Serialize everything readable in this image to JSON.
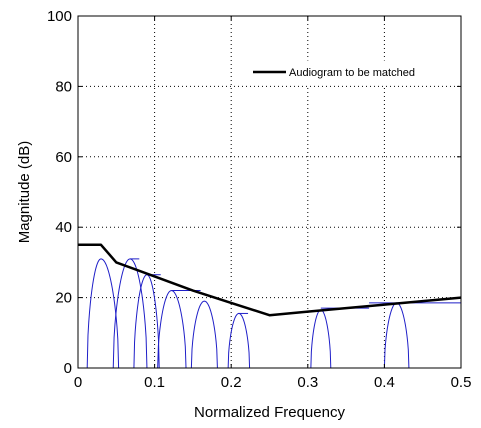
{
  "chart_data": {
    "type": "line",
    "xlabel": "Normalized Frequency",
    "ylabel": "Magnitude (dB)",
    "xlim": [
      0,
      0.5
    ],
    "ylim": [
      0,
      100
    ],
    "xticks": [
      0,
      0.1,
      0.2,
      0.3,
      0.4,
      0.5
    ],
    "xtick_labels": [
      "0",
      "0.1",
      "0.2",
      "0.3",
      "0.4",
      "0.5"
    ],
    "yticks": [
      0,
      20,
      40,
      60,
      80,
      100
    ],
    "ytick_labels": [
      "0",
      "20",
      "40",
      "60",
      "80",
      "100"
    ],
    "grid": true,
    "legend_position": "top-right",
    "colors": {
      "audiogram": "#000000",
      "filters": "#1f1fc8"
    },
    "series": [
      {
        "name": "Audiogram to be matched",
        "x": [
          0,
          0.03,
          0.05,
          0.1,
          0.15,
          0.2,
          0.25,
          0.3,
          0.35,
          0.4,
          0.45,
          0.5
        ],
        "y": [
          35,
          35,
          30,
          26,
          22,
          18.5,
          15,
          16,
          17,
          18,
          19,
          20
        ]
      }
    ],
    "filter_bands": [
      {
        "lo": 0.012,
        "hi": 0.053,
        "peak_x": 0.03,
        "peak_y": 31
      },
      {
        "lo": 0.046,
        "hi": 0.09,
        "peak_x": 0.068,
        "peak_y": 31
      },
      {
        "lo": 0.073,
        "hi": 0.106,
        "peak_x": 0.09,
        "peak_y": 26.5
      },
      {
        "lo": 0.104,
        "hi": 0.141,
        "peak_x": 0.122,
        "peak_y": 22
      },
      {
        "lo": 0.148,
        "hi": 0.182,
        "peak_x": 0.165,
        "peak_y": 19
      },
      {
        "lo": 0.196,
        "hi": 0.224,
        "peak_x": 0.21,
        "peak_y": 15.5
      },
      {
        "lo": 0.304,
        "hi": 0.33,
        "peak_x": 0.317,
        "peak_y": 16.5
      },
      {
        "lo": 0.4,
        "hi": 0.432,
        "peak_x": 0.416,
        "peak_y": 18.5
      }
    ],
    "filter_plateaus": [
      {
        "x0": 0.068,
        "x1": 0.08,
        "y": 31
      },
      {
        "x0": 0.09,
        "x1": 0.108,
        "y": 26.5
      },
      {
        "x0": 0.122,
        "x1": 0.16,
        "y": 22
      },
      {
        "x0": 0.21,
        "x1": 0.222,
        "y": 15.5
      },
      {
        "x0": 0.317,
        "x1": 0.38,
        "y": 17
      },
      {
        "x0": 0.38,
        "x1": 0.5,
        "y": 18.5
      }
    ]
  }
}
